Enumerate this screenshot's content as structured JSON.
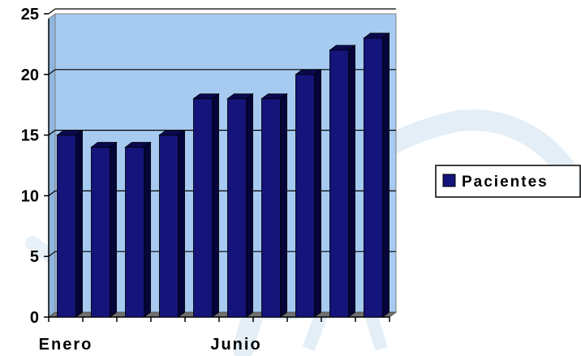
{
  "chart_data": {
    "type": "bar",
    "categories": [
      "Enero",
      "",
      "",
      "",
      "",
      "Junio",
      "",
      "",
      "",
      ""
    ],
    "series": [
      {
        "name": "Pacientes",
        "values": [
          15,
          14,
          14,
          15,
          18,
          18,
          18,
          20,
          22,
          23
        ]
      }
    ],
    "ylim": [
      0,
      25
    ],
    "yticks": [
      0,
      5,
      10,
      15,
      20,
      25
    ],
    "grid": true,
    "legend": "right",
    "colors": {
      "plot_background": "#a6caf0",
      "bar_front": "#14147a",
      "bar_top": "#0a0a50",
      "bar_side": "#05053a",
      "floor": "#6f6f6f"
    }
  }
}
